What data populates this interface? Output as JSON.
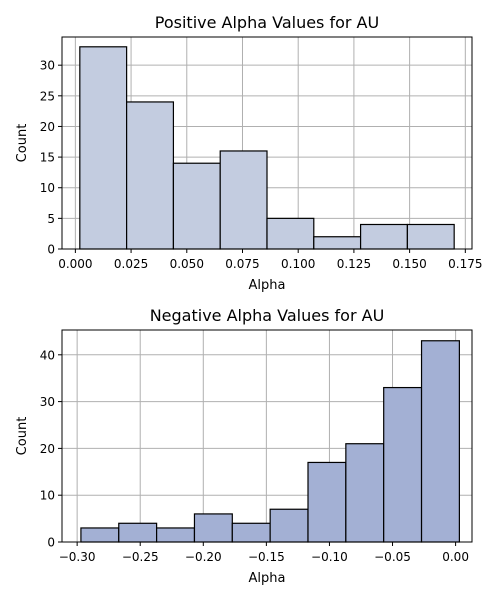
{
  "chart_data": [
    {
      "type": "bar",
      "title": "Positive Alpha Values for AU",
      "xlabel": "Alpha",
      "ylabel": "Count",
      "color": "#c3cce0",
      "bins": [
        {
          "x0": 0.002,
          "x1": 0.023,
          "count": 33
        },
        {
          "x0": 0.023,
          "x1": 0.044,
          "count": 24
        },
        {
          "x0": 0.044,
          "x1": 0.065,
          "count": 14
        },
        {
          "x0": 0.065,
          "x1": 0.086,
          "count": 16
        },
        {
          "x0": 0.086,
          "x1": 0.107,
          "count": 5
        },
        {
          "x0": 0.107,
          "x1": 0.128,
          "count": 2
        },
        {
          "x0": 0.128,
          "x1": 0.149,
          "count": 4
        },
        {
          "x0": 0.149,
          "x1": 0.17,
          "count": 4
        }
      ],
      "xlim": [
        -0.006,
        0.178
      ],
      "ylim": [
        0,
        34.6
      ],
      "xticks": [
        0.0,
        0.025,
        0.05,
        0.075,
        0.1,
        0.125,
        0.15,
        0.175
      ],
      "xtick_labels": [
        "0.000",
        "0.025",
        "0.050",
        "0.075",
        "0.100",
        "0.125",
        "0.150",
        "0.175"
      ],
      "yticks": [
        0,
        5,
        10,
        15,
        20,
        25,
        30
      ],
      "ytick_labels": [
        "0",
        "5",
        "10",
        "15",
        "20",
        "25",
        "30"
      ],
      "grid": true
    },
    {
      "type": "bar",
      "title": "Negative Alpha Values for AU",
      "xlabel": "Alpha",
      "ylabel": "Count",
      "color": "#a3b0d4",
      "bins": [
        {
          "x0": -0.297,
          "x1": -0.267,
          "count": 3
        },
        {
          "x0": -0.267,
          "x1": -0.237,
          "count": 4
        },
        {
          "x0": -0.237,
          "x1": -0.207,
          "count": 3
        },
        {
          "x0": -0.207,
          "x1": -0.177,
          "count": 6
        },
        {
          "x0": -0.177,
          "x1": -0.147,
          "count": 4
        },
        {
          "x0": -0.147,
          "x1": -0.117,
          "count": 7
        },
        {
          "x0": -0.117,
          "x1": -0.087,
          "count": 17
        },
        {
          "x0": -0.087,
          "x1": -0.057,
          "count": 21
        },
        {
          "x0": -0.057,
          "x1": -0.027,
          "count": 33
        },
        {
          "x0": -0.027,
          "x1": 0.003,
          "count": 43
        }
      ],
      "xlim": [
        -0.312,
        0.013
      ],
      "ylim": [
        0,
        45.3
      ],
      "xticks": [
        -0.3,
        -0.25,
        -0.2,
        -0.15,
        -0.1,
        -0.05,
        0.0
      ],
      "xtick_labels": [
        "−0.30",
        "−0.25",
        "−0.20",
        "−0.15",
        "−0.10",
        "−0.05",
        "0.00"
      ],
      "yticks": [
        0,
        10,
        20,
        30,
        40
      ],
      "ytick_labels": [
        "0",
        "10",
        "20",
        "30",
        "40"
      ],
      "grid": true
    }
  ]
}
